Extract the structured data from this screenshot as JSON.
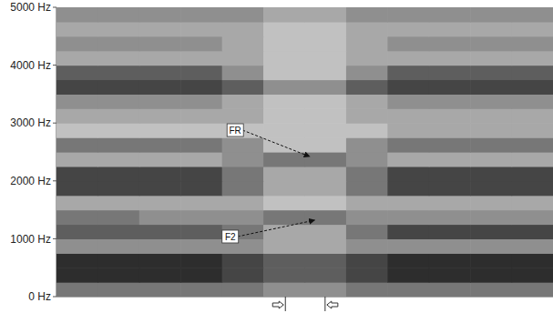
{
  "chart_data": {
    "type": "spectrogram",
    "xlim": [
      0,
      1
    ],
    "ylim": [
      0,
      5000
    ],
    "yticks": [
      {
        "value": 0,
        "label": "0 Hz"
      },
      {
        "value": 1000,
        "label": "1000 Hz"
      },
      {
        "value": 2000,
        "label": "2000 Hz"
      },
      {
        "value": 3000,
        "label": "3000 Hz"
      },
      {
        "value": 4000,
        "label": "4000 Hz"
      },
      {
        "value": 5000,
        "label": "5000 Hz"
      }
    ],
    "tick_labels": "y",
    "color_range": [
      0,
      9
    ],
    "cells": [
      [
        5,
        5,
        5,
        5,
        5,
        4,
        4,
        5,
        5,
        5,
        5,
        5
      ],
      [
        8,
        8,
        8,
        8,
        7,
        6,
        6,
        7,
        8,
        8,
        8,
        8
      ],
      [
        8,
        8,
        8,
        8,
        7,
        6,
        6,
        7,
        8,
        8,
        8,
        8
      ],
      [
        4,
        4,
        4,
        4,
        4,
        3,
        3,
        4,
        4,
        4,
        4,
        4
      ],
      [
        6,
        6,
        6,
        6,
        5,
        3,
        3,
        5,
        7,
        7,
        7,
        7
      ],
      [
        5,
        5,
        4,
        4,
        4,
        5,
        5,
        4,
        4,
        4,
        4,
        4
      ],
      [
        3,
        3,
        3,
        3,
        3,
        2,
        2,
        3,
        3,
        3,
        3,
        3
      ],
      [
        7,
        7,
        7,
        7,
        5,
        3,
        3,
        5,
        7,
        7,
        7,
        7
      ],
      [
        7,
        7,
        7,
        7,
        5,
        3,
        3,
        5,
        7,
        7,
        7,
        7
      ],
      [
        3,
        3,
        3,
        3,
        4,
        5,
        5,
        4,
        3,
        3,
        3,
        3
      ],
      [
        5,
        5,
        5,
        5,
        4,
        2,
        2,
        4,
        5,
        5,
        5,
        5
      ],
      [
        2,
        2,
        2,
        2,
        2,
        2,
        2,
        2,
        3,
        3,
        3,
        3
      ],
      [
        3,
        3,
        3,
        3,
        3,
        2,
        2,
        3,
        3,
        3,
        3,
        3
      ],
      [
        4,
        4,
        4,
        4,
        3,
        2,
        2,
        3,
        4,
        4,
        4,
        4
      ],
      [
        7,
        7,
        7,
        7,
        6,
        4,
        4,
        6,
        7,
        7,
        7,
        7
      ],
      [
        6,
        6,
        6,
        6,
        4,
        2,
        2,
        4,
        6,
        6,
        6,
        6
      ],
      [
        3,
        3,
        3,
        3,
        3,
        2,
        2,
        3,
        3,
        3,
        3,
        3
      ],
      [
        4,
        4,
        4,
        4,
        3,
        2,
        2,
        3,
        4,
        4,
        4,
        4
      ],
      [
        3,
        3,
        3,
        3,
        3,
        2,
        2,
        3,
        3,
        3,
        3,
        3
      ],
      [
        4,
        4,
        4,
        4,
        4,
        3,
        3,
        4,
        4,
        4,
        4,
        4
      ]
    ],
    "annotations": [
      {
        "text": "FR",
        "x": 0.36,
        "y": 2877,
        "target": [
          0.51,
          2420
        ]
      },
      {
        "text": "F2",
        "x": 0.35,
        "y": 1038,
        "target": [
          0.52,
          1321
        ]
      }
    ],
    "segment_bounds": [
      0.461,
      0.541
    ]
  }
}
